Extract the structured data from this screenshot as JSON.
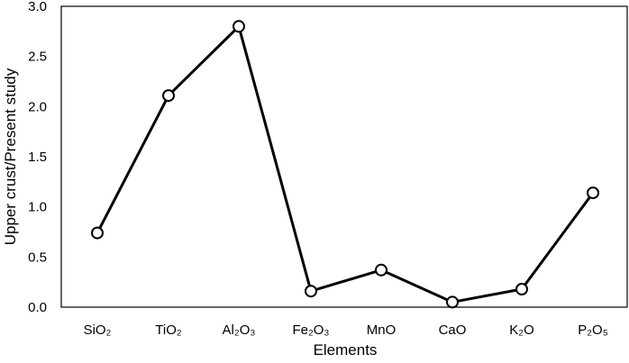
{
  "chart_data": {
    "type": "line",
    "xlabel": "Elements",
    "ylabel": "Upper crust/Present study",
    "categories": [
      "SiO₂",
      "TiO₂",
      "Al₂O₃",
      "Fe₂O₃",
      "MnO",
      "CaO",
      "K₂O",
      "P₂O₅"
    ],
    "values": [
      0.74,
      2.11,
      2.8,
      0.16,
      0.37,
      0.05,
      0.18,
      1.14
    ],
    "ylim": [
      0,
      3
    ],
    "yticks": [
      "0.0",
      "0.5",
      "1.0",
      "1.5",
      "2.0",
      "2.5",
      "3.0"
    ],
    "grid": false,
    "legend": "none",
    "marker": "open-circle",
    "line_color": "#000000"
  }
}
